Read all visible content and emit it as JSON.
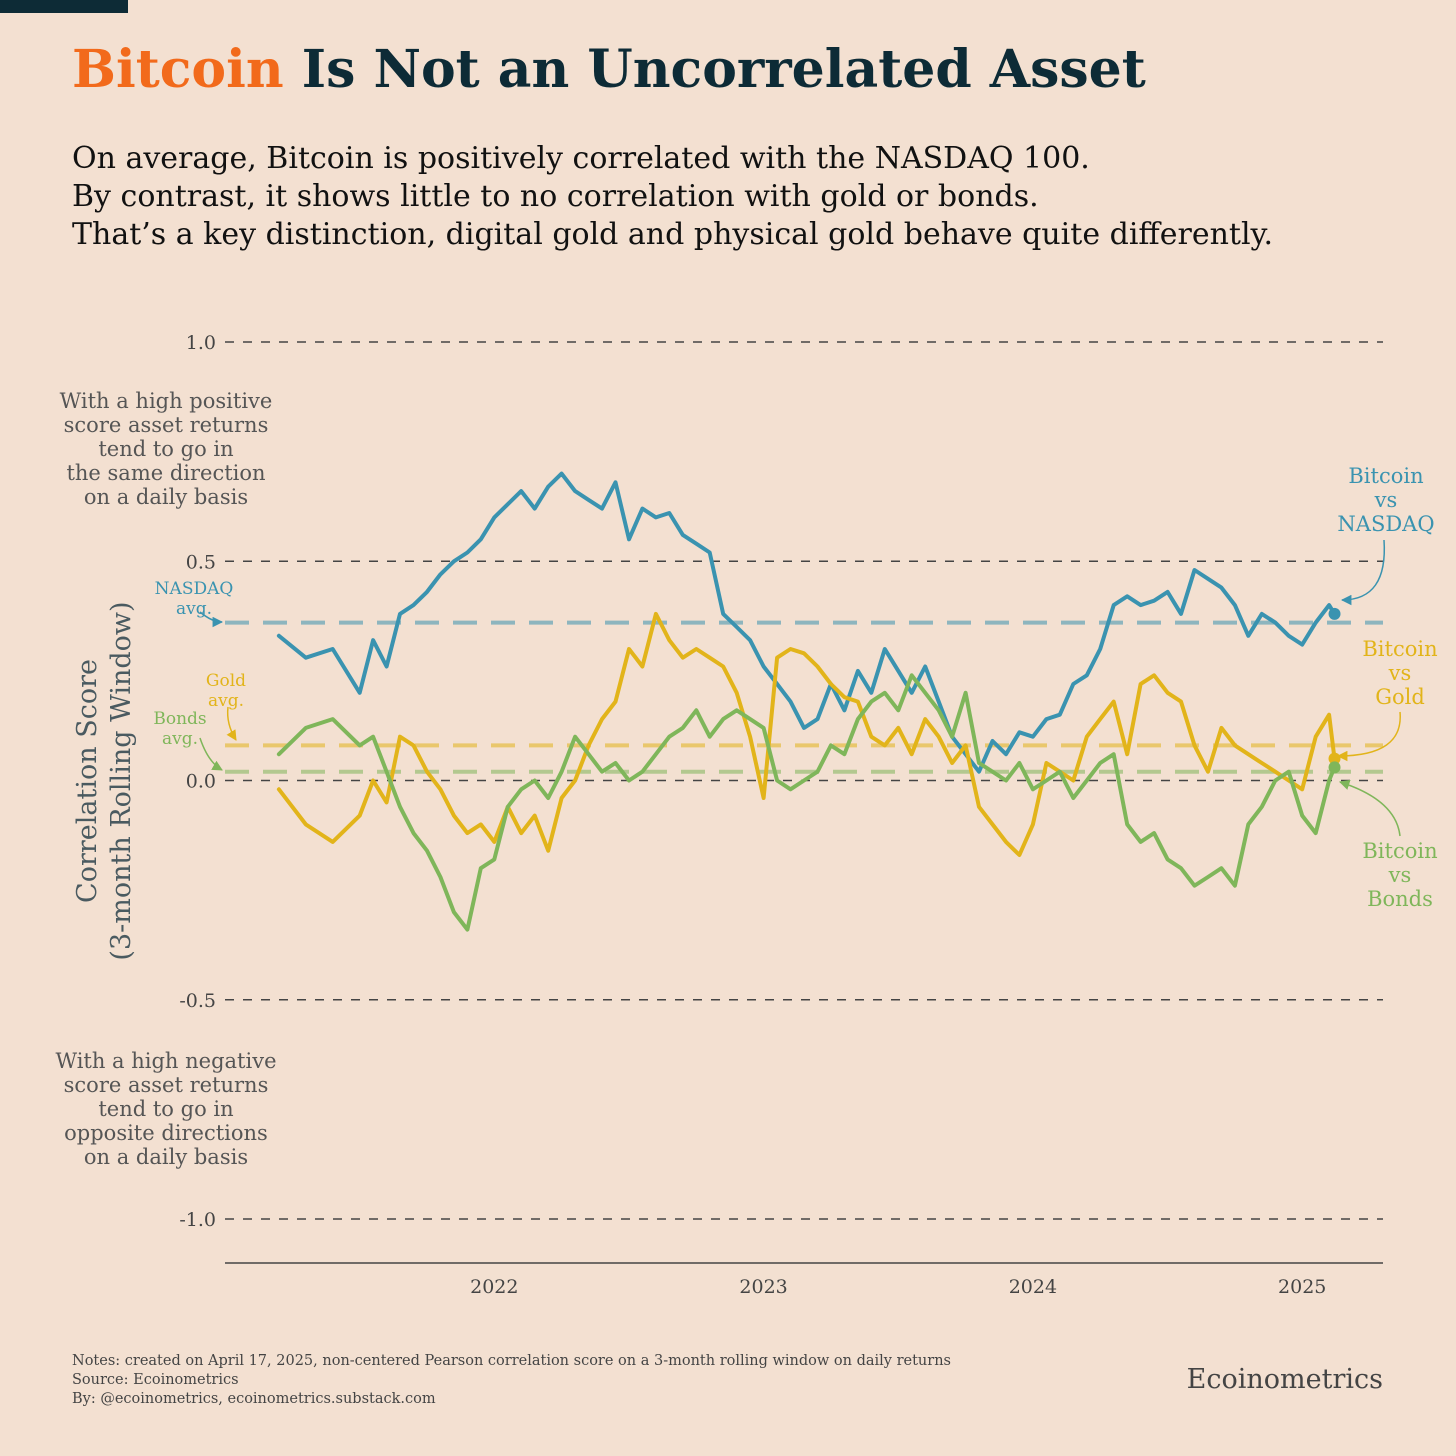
{
  "title_highlight": "Bitcoin",
  "title_rest": " Is Not an Uncorrelated Asset",
  "subtitle_lines": [
    "On average, Bitcoin is positively correlated with the NASDAQ 100.",
    "By contrast, it shows little to no correlation with gold or bonds.",
    "That’s a key distinction, digital gold and physical gold behave quite differently."
  ],
  "notes": [
    "Notes: created on April 17, 2025, non-centered Pearson correlation score on a 3-month rolling window on daily returns",
    "Source: Ecoinometrics",
    "By: @ecoinometrics, ecoinometrics.substack.com"
  ],
  "brand": "Ecoinometrics",
  "colors": {
    "accent": "#f26a1b",
    "title": "#0d2b36",
    "nasdaq": "#3a93b0",
    "gold": "#e2b41a",
    "bonds": "#7fb65a",
    "background": "#f3e0d1"
  },
  "chart_data": {
    "type": "line",
    "ylabel": [
      "Correlation Score",
      "(3-month Rolling Window)"
    ],
    "ylim": [
      -1.0,
      1.0
    ],
    "y_ticks": [
      1.0,
      0.5,
      0.0,
      -0.5,
      -1.0
    ],
    "y_tick_labels": [
      "1.0",
      "0.5",
      "0.0",
      "-0.5",
      "-1.0"
    ],
    "x_ticks": [
      "2022",
      "2023",
      "2024",
      "2025"
    ],
    "x_tick_values": [
      2022.0,
      2023.0,
      2024.0,
      2025.0
    ],
    "x_range": [
      2021.0,
      2025.3
    ],
    "grid": "dashed horizontal at y ticks",
    "annotations": {
      "positive": [
        "With a high positive",
        "score asset returns",
        "tend to go in",
        "the same direction",
        "on a daily basis"
      ],
      "negative": [
        "With a high negative",
        "score asset returns",
        "tend to go in",
        "opposite directions",
        "on a daily basis"
      ]
    },
    "averages": [
      {
        "label": [
          "NASDAQ",
          "avg."
        ],
        "value": 0.36,
        "color": "#3a93b0"
      },
      {
        "label": [
          "Gold",
          "avg."
        ],
        "value": 0.08,
        "color": "#e2b41a"
      },
      {
        "label": [
          "Bonds",
          "avg."
        ],
        "value": 0.02,
        "color": "#7fb65a"
      }
    ],
    "series": [
      {
        "name": [
          "Bitcoin",
          "vs",
          "NASDAQ"
        ],
        "color": "#3a93b0",
        "x": [
          2021.2,
          2021.3,
          2021.4,
          2021.5,
          2021.55,
          2021.6,
          2021.65,
          2021.7,
          2021.75,
          2021.8,
          2021.85,
          2021.9,
          2021.95,
          2022.0,
          2022.05,
          2022.1,
          2022.15,
          2022.2,
          2022.25,
          2022.3,
          2022.35,
          2022.4,
          2022.45,
          2022.5,
          2022.55,
          2022.6,
          2022.65,
          2022.7,
          2022.75,
          2022.8,
          2022.85,
          2022.9,
          2022.95,
          2023.0,
          2023.05,
          2023.1,
          2023.15,
          2023.2,
          2023.25,
          2023.3,
          2023.35,
          2023.4,
          2023.45,
          2023.5,
          2023.55,
          2023.6,
          2023.65,
          2023.7,
          2023.75,
          2023.8,
          2023.85,
          2023.9,
          2023.95,
          2024.0,
          2024.05,
          2024.1,
          2024.15,
          2024.2,
          2024.25,
          2024.3,
          2024.35,
          2024.4,
          2024.45,
          2024.5,
          2024.55,
          2024.6,
          2024.65,
          2024.7,
          2024.75,
          2024.8,
          2024.85,
          2024.9,
          2024.95,
          2025.0,
          2025.05,
          2025.1,
          2025.12
        ],
        "y": [
          0.33,
          0.28,
          0.3,
          0.2,
          0.32,
          0.26,
          0.38,
          0.4,
          0.43,
          0.47,
          0.5,
          0.52,
          0.55,
          0.6,
          0.63,
          0.66,
          0.62,
          0.67,
          0.7,
          0.66,
          0.64,
          0.62,
          0.68,
          0.55,
          0.62,
          0.6,
          0.61,
          0.56,
          0.54,
          0.52,
          0.38,
          0.35,
          0.32,
          0.26,
          0.22,
          0.18,
          0.12,
          0.14,
          0.22,
          0.16,
          0.25,
          0.2,
          0.3,
          0.25,
          0.2,
          0.26,
          0.18,
          0.1,
          0.06,
          0.02,
          0.09,
          0.06,
          0.11,
          0.1,
          0.14,
          0.15,
          0.22,
          0.24,
          0.3,
          0.4,
          0.42,
          0.4,
          0.41,
          0.43,
          0.38,
          0.48,
          0.46,
          0.44,
          0.4,
          0.33,
          0.38,
          0.36,
          0.33,
          0.31,
          0.36,
          0.4,
          0.38
        ]
      },
      {
        "name": [
          "Bitcoin",
          "vs",
          "Gold"
        ],
        "color": "#e2b41a",
        "x": [
          2021.2,
          2021.3,
          2021.4,
          2021.5,
          2021.55,
          2021.6,
          2021.65,
          2021.7,
          2021.75,
          2021.8,
          2021.85,
          2021.9,
          2021.95,
          2022.0,
          2022.05,
          2022.1,
          2022.15,
          2022.2,
          2022.25,
          2022.3,
          2022.35,
          2022.4,
          2022.45,
          2022.5,
          2022.55,
          2022.6,
          2022.65,
          2022.7,
          2022.75,
          2022.8,
          2022.85,
          2022.9,
          2022.95,
          2023.0,
          2023.05,
          2023.1,
          2023.15,
          2023.2,
          2023.25,
          2023.3,
          2023.35,
          2023.4,
          2023.45,
          2023.5,
          2023.55,
          2023.6,
          2023.65,
          2023.7,
          2023.75,
          2023.8,
          2023.85,
          2023.9,
          2023.95,
          2024.0,
          2024.05,
          2024.1,
          2024.15,
          2024.2,
          2024.25,
          2024.3,
          2024.35,
          2024.4,
          2024.45,
          2024.5,
          2024.55,
          2024.6,
          2024.65,
          2024.7,
          2024.75,
          2024.8,
          2024.85,
          2024.9,
          2024.95,
          2025.0,
          2025.05,
          2025.1,
          2025.12
        ],
        "y": [
          -0.02,
          -0.1,
          -0.14,
          -0.08,
          0.0,
          -0.05,
          0.1,
          0.08,
          0.02,
          -0.02,
          -0.08,
          -0.12,
          -0.1,
          -0.14,
          -0.06,
          -0.12,
          -0.08,
          -0.16,
          -0.04,
          0.0,
          0.08,
          0.14,
          0.18,
          0.3,
          0.26,
          0.38,
          0.32,
          0.28,
          0.3,
          0.28,
          0.26,
          0.2,
          0.1,
          -0.04,
          0.28,
          0.3,
          0.29,
          0.26,
          0.22,
          0.19,
          0.18,
          0.1,
          0.08,
          0.12,
          0.06,
          0.14,
          0.1,
          0.04,
          0.08,
          -0.06,
          -0.1,
          -0.14,
          -0.17,
          -0.1,
          0.04,
          0.02,
          0.0,
          0.1,
          0.14,
          0.18,
          0.06,
          0.22,
          0.24,
          0.2,
          0.18,
          0.08,
          0.02,
          0.12,
          0.08,
          0.06,
          0.04,
          0.02,
          0.0,
          -0.02,
          0.1,
          0.15,
          0.05
        ]
      },
      {
        "name": [
          "Bitcoin",
          "vs",
          "Bonds"
        ],
        "color": "#7fb65a",
        "x": [
          2021.2,
          2021.3,
          2021.4,
          2021.5,
          2021.55,
          2021.6,
          2021.65,
          2021.7,
          2021.75,
          2021.8,
          2021.85,
          2021.9,
          2021.95,
          2022.0,
          2022.05,
          2022.1,
          2022.15,
          2022.2,
          2022.25,
          2022.3,
          2022.35,
          2022.4,
          2022.45,
          2022.5,
          2022.55,
          2022.6,
          2022.65,
          2022.7,
          2022.75,
          2022.8,
          2022.85,
          2022.9,
          2022.95,
          2023.0,
          2023.05,
          2023.1,
          2023.15,
          2023.2,
          2023.25,
          2023.3,
          2023.35,
          2023.4,
          2023.45,
          2023.5,
          2023.55,
          2023.6,
          2023.65,
          2023.7,
          2023.75,
          2023.8,
          2023.85,
          2023.9,
          2023.95,
          2024.0,
          2024.05,
          2024.1,
          2024.15,
          2024.2,
          2024.25,
          2024.3,
          2024.35,
          2024.4,
          2024.45,
          2024.5,
          2024.55,
          2024.6,
          2024.65,
          2024.7,
          2024.75,
          2024.8,
          2024.85,
          2024.9,
          2024.95,
          2025.0,
          2025.05,
          2025.1,
          2025.12
        ],
        "y": [
          0.06,
          0.12,
          0.14,
          0.08,
          0.1,
          0.02,
          -0.06,
          -0.12,
          -0.16,
          -0.22,
          -0.3,
          -0.34,
          -0.2,
          -0.18,
          -0.06,
          -0.02,
          0.0,
          -0.04,
          0.02,
          0.1,
          0.06,
          0.02,
          0.04,
          0.0,
          0.02,
          0.06,
          0.1,
          0.12,
          0.16,
          0.1,
          0.14,
          0.16,
          0.14,
          0.12,
          0.0,
          -0.02,
          0.0,
          0.02,
          0.08,
          0.06,
          0.14,
          0.18,
          0.2,
          0.16,
          0.24,
          0.2,
          0.16,
          0.1,
          0.2,
          0.04,
          0.02,
          0.0,
          0.04,
          -0.02,
          0.0,
          0.02,
          -0.04,
          0.0,
          0.04,
          0.06,
          -0.1,
          -0.14,
          -0.12,
          -0.18,
          -0.2,
          -0.24,
          -0.22,
          -0.2,
          -0.24,
          -0.1,
          -0.06,
          0.0,
          0.02,
          -0.08,
          -0.12,
          0.0,
          0.03
        ]
      }
    ]
  }
}
